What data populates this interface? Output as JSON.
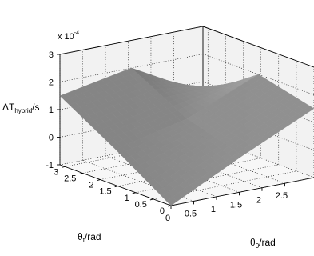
{
  "chart_data": {
    "type": "surface3d",
    "title": "",
    "zlabel": {
      "main": "ΔT",
      "sub": "hybrid",
      "suffix": "/s"
    },
    "xlabel": {
      "main": "θ",
      "sub": "0",
      "suffix": "/rad"
    },
    "ylabel": {
      "main": "θ",
      "sub": "f",
      "suffix": "/rad"
    },
    "zscale_label": {
      "base": "x 10",
      "exp": "-4"
    },
    "xlim": [
      0,
      3.14159
    ],
    "ylim": [
      0,
      3.14159
    ],
    "zlim": [
      -1,
      3
    ],
    "z_ticks": [
      "-1",
      "0",
      "1",
      "2",
      "3"
    ],
    "y_ticks": [
      "0",
      "0.5",
      "1",
      "1.5",
      "2",
      "2.5",
      "3"
    ],
    "x_ticks": [
      "0",
      "0.5",
      "1",
      "1.5",
      "2",
      "2.5"
    ],
    "grid": true,
    "colormap": "gray",
    "surface": {
      "x_knots": [
        0,
        1.5708,
        3.14159
      ],
      "y_knots": [
        0,
        1.5708,
        3.14159
      ],
      "z_grid": [
        [
          -1.0,
          0.3,
          1.5
        ],
        [
          0.3,
          0.9,
          2.0
        ],
        [
          1.5,
          2.0,
          0.6
        ]
      ],
      "edge_note_z": [
        0.65,
        0.6
      ]
    }
  }
}
